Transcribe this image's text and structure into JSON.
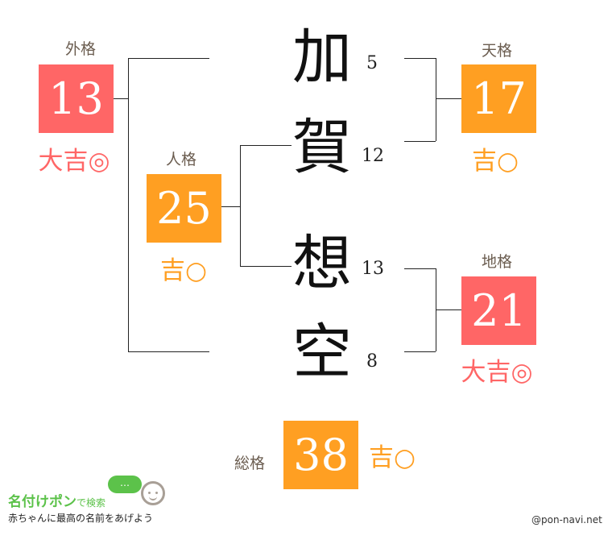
{
  "name_chars": [
    {
      "char": "加",
      "strokes": "5"
    },
    {
      "char": "賀",
      "strokes": "12"
    },
    {
      "char": "想",
      "strokes": "13"
    },
    {
      "char": "空",
      "strokes": "8"
    }
  ],
  "gaikaku": {
    "label": "外格",
    "value": "13",
    "fortune": "大吉◎",
    "color": "#ff6666"
  },
  "jinkaku": {
    "label": "人格",
    "value": "25",
    "fortune": "吉○",
    "color": "#ff9f22"
  },
  "tenkaku": {
    "label": "天格",
    "value": "17",
    "fortune": "吉○",
    "color": "#ff9f22"
  },
  "chikaku": {
    "label": "地格",
    "value": "21",
    "fortune": "大吉◎",
    "color": "#ff6666"
  },
  "soukaku": {
    "label": "総格",
    "value": "38",
    "fortune": "吉○",
    "color": "#ff9f22"
  },
  "footer": {
    "logo_title": "名付けポン",
    "logo_suffix": "で検索",
    "logo_tagline": "赤ちゃんに最高の名前をあげよう",
    "bubble": "…",
    "credit": "@pon-navi.net"
  }
}
